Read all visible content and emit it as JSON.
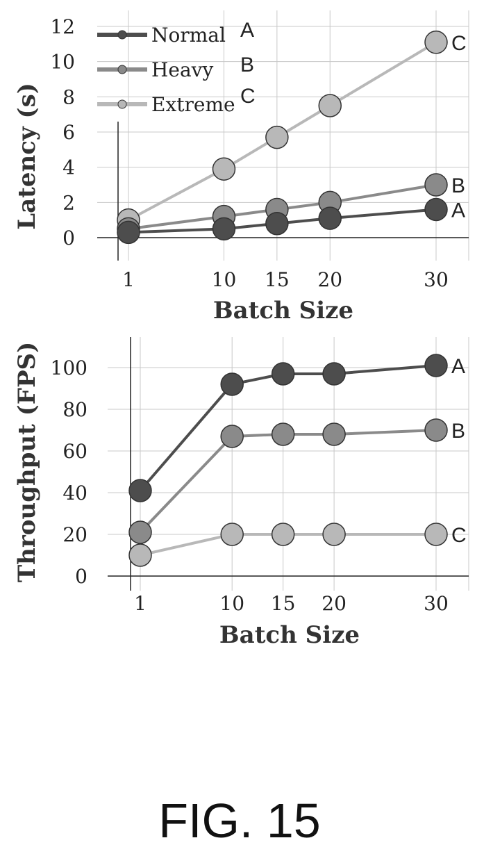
{
  "figure_label": "FIG. 15",
  "colors": {
    "A": "#4d4d4d",
    "B": "#8a8a8a",
    "C": "#b8b8b8",
    "grid": "#c8c8c8",
    "axis": "#222222"
  },
  "chart_data": [
    {
      "type": "line",
      "xlabel": "Batch Size",
      "ylabel": "Latency (s)",
      "x": [
        1,
        10,
        15,
        20,
        30
      ],
      "x_tick_labels": [
        "1",
        "10",
        "15",
        "20",
        "30"
      ],
      "ylim": [
        0,
        12
      ],
      "y_ticks": [
        0,
        2,
        4,
        6,
        8,
        10,
        12
      ],
      "grid": true,
      "legend": {
        "placement": "top-left",
        "entries": [
          {
            "name": "Normal",
            "tag": "A"
          },
          {
            "name": "Heavy",
            "tag": "B"
          },
          {
            "name": "Extreme",
            "tag": "C"
          }
        ]
      },
      "series": [
        {
          "name": "Normal",
          "end_label": "A",
          "values": [
            0.3,
            0.5,
            0.8,
            1.1,
            1.6
          ]
        },
        {
          "name": "Heavy",
          "end_label": "B",
          "values": [
            0.5,
            1.2,
            1.6,
            2.0,
            3.0
          ]
        },
        {
          "name": "Extreme",
          "end_label": "C",
          "values": [
            1.0,
            3.9,
            5.7,
            7.5,
            11.1
          ]
        }
      ]
    },
    {
      "type": "line",
      "xlabel": "Batch Size",
      "ylabel": "Throughput (FPS)",
      "x": [
        1,
        10,
        15,
        20,
        30
      ],
      "x_tick_labels": [
        "1",
        "10",
        "15",
        "20",
        "30"
      ],
      "ylim": [
        0,
        100
      ],
      "y_ticks": [
        0,
        20,
        40,
        60,
        80,
        100
      ],
      "grid": true,
      "series": [
        {
          "name": "Normal",
          "end_label": "A",
          "values": [
            41,
            92,
            97,
            97,
            101
          ]
        },
        {
          "name": "Heavy",
          "end_label": "B",
          "values": [
            21,
            67,
            68,
            68,
            70
          ]
        },
        {
          "name": "Extreme",
          "end_label": "C",
          "values": [
            10,
            20,
            20,
            20,
            20
          ]
        }
      ]
    }
  ]
}
